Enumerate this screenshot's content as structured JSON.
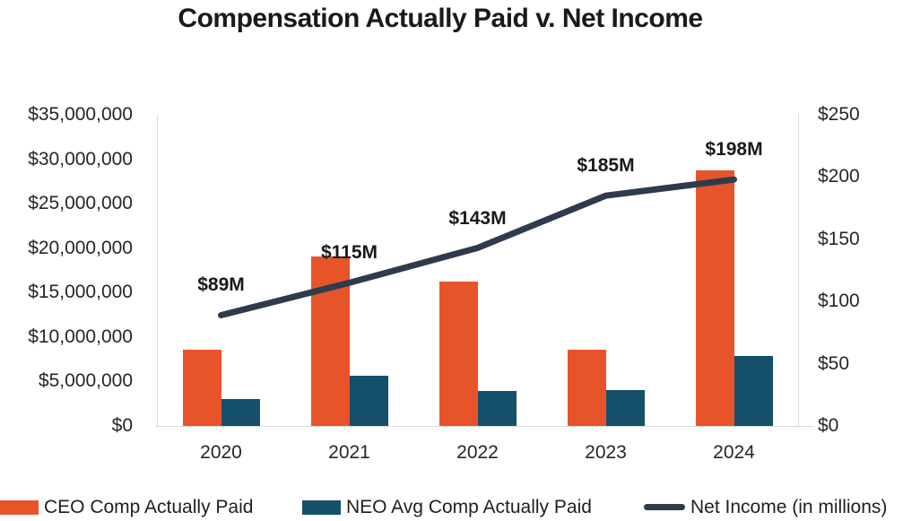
{
  "title": "Compensation Actually Paid v. Net Income",
  "colors": {
    "ceo_bar": "#E8542A",
    "neo_bar": "#15506B",
    "net_income_line": "#2E3B4C",
    "axis_line": "#D9D9D9",
    "axis_text": "#262626",
    "title_text": "#1A1A1A"
  },
  "chart_data": {
    "type": "bar",
    "subtype": "grouped-bars-with-line-overlay",
    "title": "Compensation Actually Paid v. Net Income",
    "categories": [
      "2020",
      "2021",
      "2022",
      "2023",
      "2024"
    ],
    "series": [
      {
        "name": "CEO Comp Actually Paid",
        "kind": "bar",
        "axis": "left",
        "color": "#E8542A",
        "values": [
          8600000,
          19100000,
          16200000,
          8600000,
          28700000
        ]
      },
      {
        "name": "NEO Avg Comp Actually Paid",
        "kind": "bar",
        "axis": "left",
        "color": "#15506B",
        "values": [
          3000000,
          5600000,
          3900000,
          4000000,
          7900000
        ]
      },
      {
        "name": "Net Income (in millions)",
        "kind": "line",
        "axis": "right",
        "color": "#2E3B4C",
        "values": [
          89,
          115,
          143,
          185,
          198
        ],
        "point_labels": [
          "$89M",
          "$115M",
          "$143M",
          "$185M",
          "$198M"
        ]
      }
    ],
    "left_axis": {
      "min": 0,
      "max": 35000000,
      "ticks": [
        "$35,000,000",
        "$30,000,000",
        "$25,000,000",
        "$20,000,000",
        "$15,000,000",
        "$10,000,000",
        "$5,000,000",
        "$0"
      ]
    },
    "right_axis": {
      "min": 0,
      "max": 250,
      "ticks": [
        "$250",
        "$200",
        "$150",
        "$100",
        "$50",
        "$0"
      ]
    },
    "grid": false,
    "legend_position": "bottom-left"
  },
  "legend": {
    "items": [
      {
        "label": "CEO Comp Actually Paid",
        "swatch": "bar",
        "color": "#E8542A"
      },
      {
        "label": "NEO Avg Comp Actually Paid",
        "swatch": "bar",
        "color": "#15506B"
      },
      {
        "label": "Net Income (in millions)",
        "swatch": "line",
        "color": "#2E3B4C"
      }
    ]
  }
}
